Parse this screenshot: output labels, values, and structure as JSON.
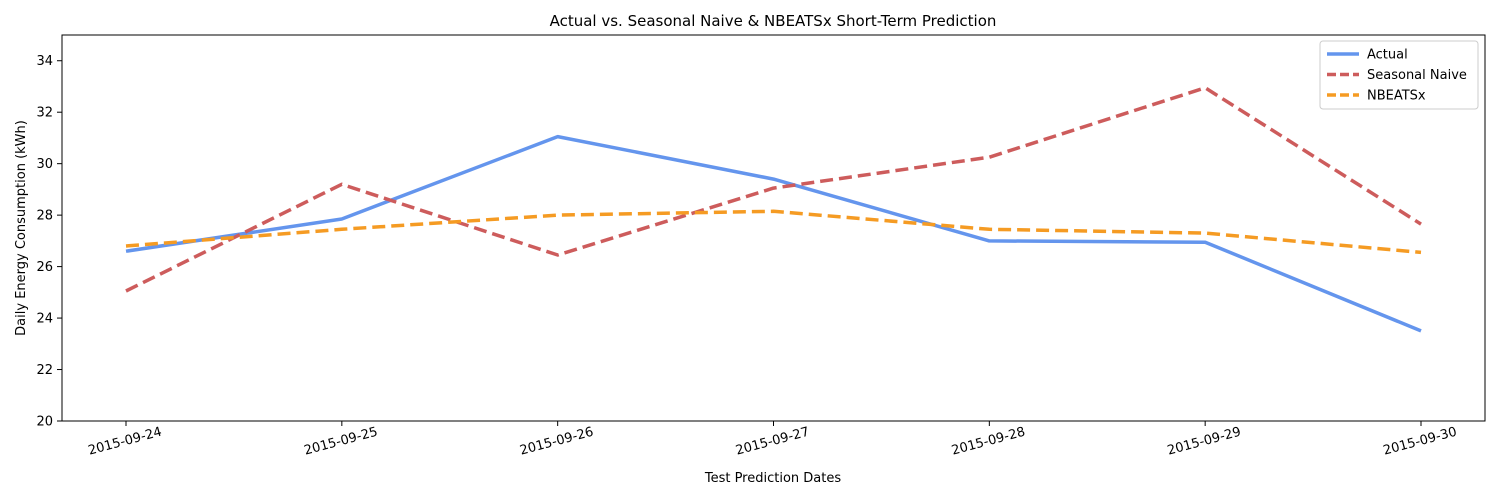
{
  "chart_data": {
    "type": "line",
    "title": "Actual vs. Seasonal Naive & NBEATSx Short-Term Prediction",
    "xlabel": "Test Prediction Dates",
    "ylabel": "Daily Energy Consumption (kWh)",
    "x": [
      "2015-09-24",
      "2015-09-25",
      "2015-09-26",
      "2015-09-27",
      "2015-09-28",
      "2015-09-29",
      "2015-09-30"
    ],
    "ylim": [
      20,
      35
    ],
    "yticks": [
      20,
      22,
      24,
      26,
      28,
      30,
      32,
      34
    ],
    "grid": false,
    "legend_position": "top-right",
    "series": [
      {
        "name": "Actual",
        "color": "#6495ED",
        "dash": "solid",
        "values": [
          26.6,
          27.85,
          31.05,
          29.4,
          27.0,
          26.95,
          23.5
        ]
      },
      {
        "name": "Seasonal Naive",
        "color": "#CD5C5C",
        "dash": "dashed",
        "values": [
          25.05,
          29.2,
          26.45,
          29.05,
          30.25,
          32.95,
          27.65
        ]
      },
      {
        "name": "NBEATSx",
        "color": "#F59B23",
        "dash": "dashed",
        "values": [
          26.8,
          27.45,
          28.0,
          28.15,
          27.45,
          27.3,
          26.55
        ]
      }
    ]
  }
}
